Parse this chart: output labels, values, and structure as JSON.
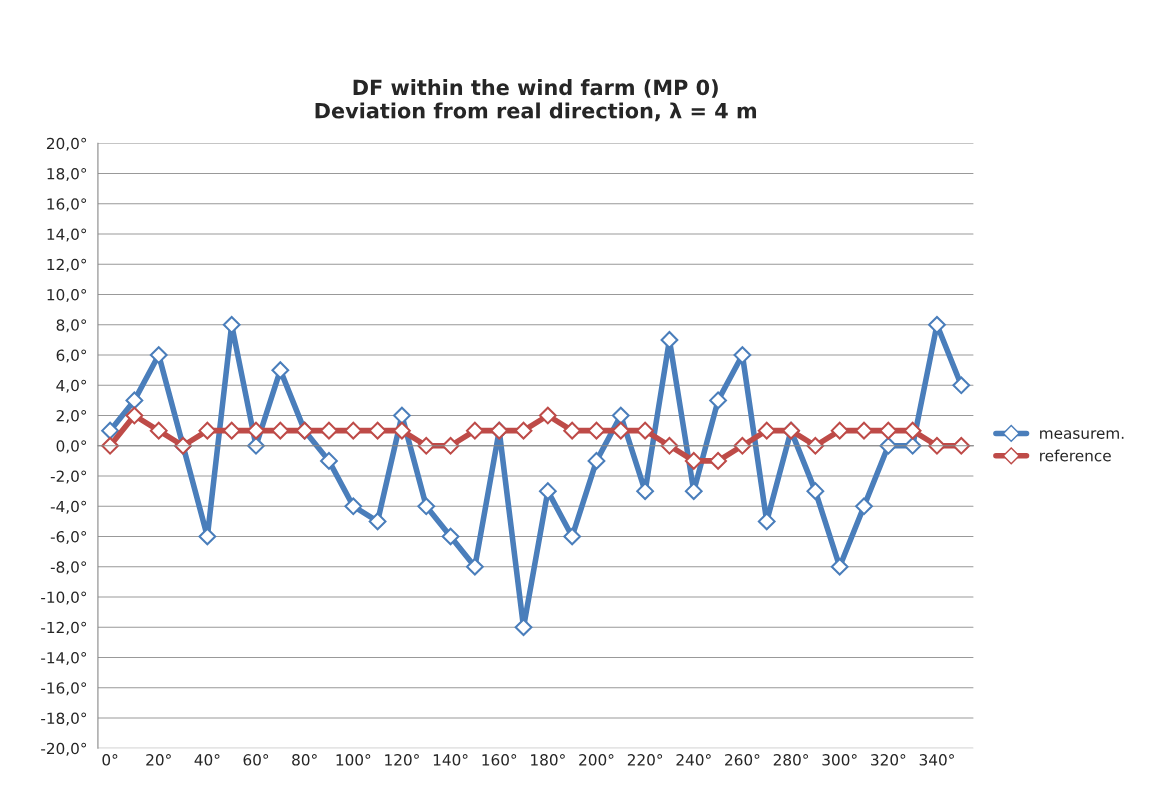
{
  "chart_data": {
    "type": "line",
    "title": "DF within the wind farm (MP 0)\nDeviation from real direction, λ = 4 m",
    "categories": [
      "0°",
      null,
      "20°",
      null,
      "40°",
      null,
      "60°",
      null,
      "80°",
      null,
      "100°",
      null,
      "120°",
      null,
      "140°",
      null,
      "160°",
      null,
      "180°",
      null,
      "200°",
      null,
      "220°",
      null,
      "240°",
      null,
      "260°",
      null,
      "280°",
      null,
      "300°",
      null,
      "320°",
      null,
      "340°",
      null
    ],
    "series": [
      {
        "name": "measurem.",
        "color": "#4a7ebb",
        "values": [
          1,
          3,
          6,
          0,
          -6,
          8,
          0,
          5,
          1,
          -1,
          -4,
          -5,
          2,
          -4,
          -6,
          -8,
          1,
          -12,
          -3,
          -6,
          -1,
          2,
          -3,
          7,
          -3,
          3,
          6,
          -5,
          1,
          -3,
          -8,
          -4,
          0,
          0,
          8,
          4
        ]
      },
      {
        "name": "reference",
        "color": "#be4b48",
        "values": [
          0,
          2,
          1,
          0,
          1,
          1,
          1,
          1,
          1,
          1,
          1,
          1,
          1,
          0,
          0,
          1,
          1,
          1,
          2,
          1,
          1,
          1,
          1,
          0,
          -1,
          -1,
          0,
          1,
          1,
          0,
          1,
          1,
          1,
          1,
          0,
          0
        ]
      }
    ],
    "ylim": [
      -20,
      20
    ],
    "yticks": [
      {
        "value": -20,
        "label": "-20,0°"
      },
      {
        "value": -18,
        "label": "-18,0°"
      },
      {
        "value": -16,
        "label": "-16,0°"
      },
      {
        "value": -14,
        "label": "-14,0°"
      },
      {
        "value": -12,
        "label": "-12,0°"
      },
      {
        "value": -10,
        "label": "-10,0°"
      },
      {
        "value": -8,
        "label": "-8,0°"
      },
      {
        "value": -6,
        "label": "-6,0°"
      },
      {
        "value": -4,
        "label": "-4,0°"
      },
      {
        "value": -2,
        "label": "-2,0°"
      },
      {
        "value": 0,
        "label": "0,0°"
      },
      {
        "value": 2,
        "label": "2,0°"
      },
      {
        "value": 4,
        "label": "4,0°"
      },
      {
        "value": 6,
        "label": "6,0°"
      },
      {
        "value": 8,
        "label": "8,0°"
      },
      {
        "value": 10,
        "label": "10,0°"
      },
      {
        "value": 12,
        "label": "12,0°"
      },
      {
        "value": 14,
        "label": "14,0°"
      },
      {
        "value": 16,
        "label": "16,0°"
      },
      {
        "value": 18,
        "label": "18,0°"
      },
      {
        "value": 20,
        "label": "20,0°"
      }
    ],
    "grid": "y",
    "legend": "right",
    "marker": "diamond",
    "line_style": "solid"
  }
}
